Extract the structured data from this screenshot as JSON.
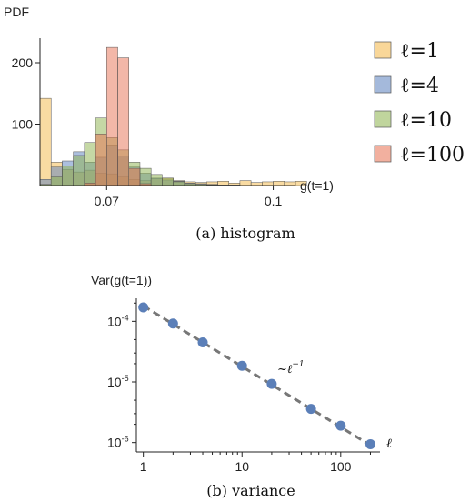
{
  "chart_data": [
    {
      "type": "bar",
      "caption": "(a) histogram",
      "ylabel": "PDF",
      "xlabel": "g(t=1)",
      "xlim": [
        0.058,
        0.104
      ],
      "ylim": [
        0,
        240
      ],
      "xticks": [
        {
          "value": 0.07,
          "label": "0.07"
        },
        {
          "value": 0.1,
          "label": "0.1"
        }
      ],
      "yticks": [
        {
          "value": 100,
          "label": "100"
        },
        {
          "value": 200,
          "label": "200"
        }
      ],
      "bin_start": 0.058,
      "bin_width": 0.002,
      "legend_position": "right",
      "series": [
        {
          "name": "ℓ=1",
          "color": "#f4b746",
          "values": [
            142,
            38,
            26,
            22,
            25,
            20,
            19,
            14,
            10,
            8,
            11,
            12,
            8,
            6,
            5,
            6,
            7,
            4,
            8,
            5,
            6,
            7,
            6,
            7
          ]
        },
        {
          "name": "ℓ=4",
          "color": "#5a7fbd",
          "values": [
            10,
            30,
            40,
            55,
            38,
            46,
            66,
            48,
            30,
            20,
            12,
            9,
            7,
            4,
            3,
            2,
            1,
            1,
            0,
            0,
            0,
            0,
            0,
            0
          ]
        },
        {
          "name": "ℓ=10",
          "color": "#8cb24c",
          "values": [
            2,
            14,
            32,
            49,
            70,
            110,
            78,
            58,
            38,
            28,
            18,
            12,
            6,
            3,
            2,
            1,
            0,
            0,
            0,
            0,
            0,
            0,
            0,
            0
          ]
        },
        {
          "name": "ℓ=100",
          "color": "#e76f51",
          "values": [
            0,
            0,
            0,
            0,
            4,
            84,
            225,
            208,
            28,
            3,
            0,
            0,
            0,
            0,
            0,
            0,
            0,
            0,
            0,
            0,
            0,
            0,
            0,
            0
          ]
        }
      ]
    },
    {
      "type": "scatter",
      "caption": "(b) variance",
      "ylabel": "Var(g(t=1))",
      "xlabel": "ℓ",
      "xscale": "log",
      "yscale": "log",
      "xlim": [
        0.85,
        250
      ],
      "ylim": [
        7e-07,
        0.00024
      ],
      "xticks": [
        {
          "value": 1,
          "label": "1"
        },
        {
          "value": 10,
          "label": "10"
        },
        {
          "value": 100,
          "label": "100"
        }
      ],
      "yticks": [
        {
          "value": 0.0001,
          "base": "10",
          "exp": "-4"
        },
        {
          "value": 1e-05,
          "base": "10",
          "exp": "-5"
        },
        {
          "value": 1e-06,
          "base": "10",
          "exp": "-6"
        }
      ],
      "points": [
        {
          "x": 1,
          "y": 0.00017
        },
        {
          "x": 2,
          "y": 9.2e-05
        },
        {
          "x": 4,
          "y": 4.5e-05
        },
        {
          "x": 10,
          "y": 1.85e-05
        },
        {
          "x": 20,
          "y": 9.3e-06
        },
        {
          "x": 50,
          "y": 3.6e-06
        },
        {
          "x": 100,
          "y": 1.9e-06
        },
        {
          "x": 200,
          "y": 9.4e-07
        }
      ],
      "fit": {
        "label": "~ℓ",
        "exponent": "−1",
        "x_from": 1,
        "x_to": 210,
        "y_at_1": 0.00018,
        "slope": -1
      },
      "point_color": "#5b7fb8",
      "line_color": "#777777"
    }
  ]
}
